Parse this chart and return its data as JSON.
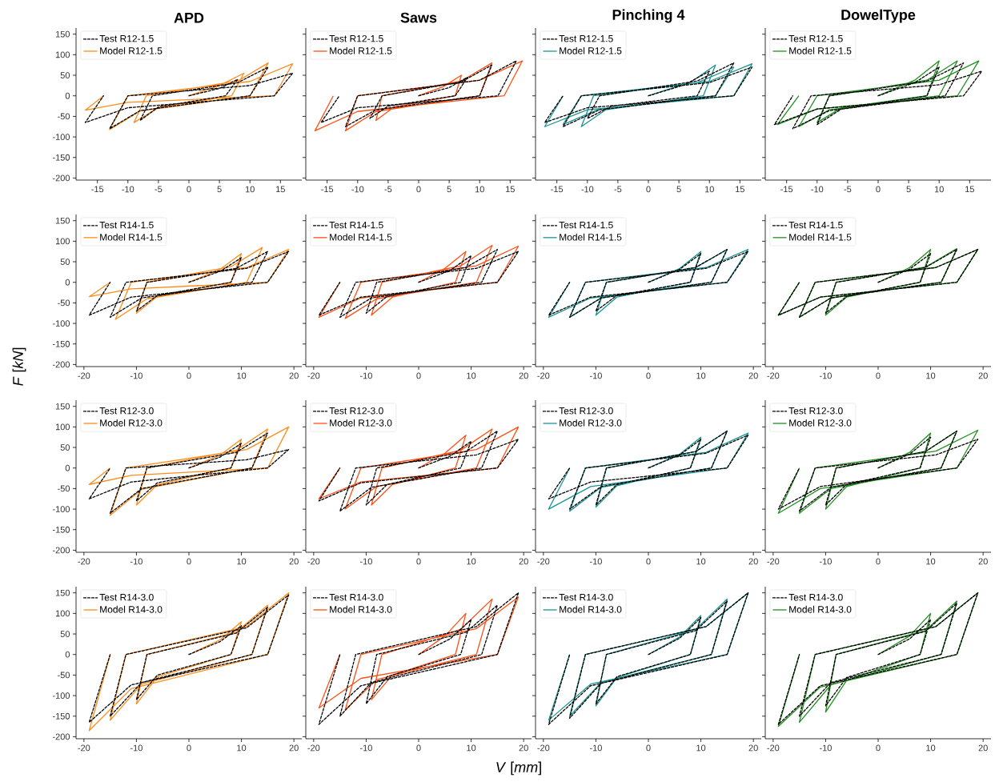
{
  "chart_data": [
    {
      "type": "line",
      "title": "APD",
      "xlim": [
        -18.5,
        18.5
      ],
      "ylim": [
        -205,
        165
      ],
      "xticks": [
        -15,
        -10,
        -5,
        0,
        5,
        10,
        15
      ],
      "yticks": [
        -200,
        -150,
        -100,
        -50,
        0,
        50,
        100,
        150
      ],
      "legend": "top left",
      "series": [
        {
          "name": "Test R12-1.5",
          "color": "#000000",
          "line_style": "dashed",
          "x": [
            0,
            5,
            8,
            6,
            -5,
            -8,
            -6,
            8,
            13,
            10,
            -8,
            -13,
            -10,
            10,
            17,
            14,
            -10,
            -17,
            -14
          ],
          "values": [
            0,
            18,
            40,
            0,
            -27,
            -60,
            0,
            32,
            70,
            0,
            -36,
            -80,
            0,
            25,
            55,
            0,
            -29,
            -65,
            0
          ]
        },
        {
          "name": "Model R12-1.5",
          "color": "#ff8c1a",
          "line_style": "solid",
          "x": [
            0,
            5,
            9,
            7,
            -5,
            -9,
            -7,
            8,
            13,
            10,
            -8,
            -13,
            -10,
            10,
            17,
            14,
            -10,
            -17,
            -14
          ],
          "values": [
            0,
            25,
            55,
            0,
            -29,
            -65,
            0,
            36,
            80,
            0,
            -37,
            -82,
            0,
            35,
            78,
            0,
            -16,
            -35,
            0
          ]
        }
      ]
    },
    {
      "type": "line",
      "title": "Saws",
      "xlim": [
        -18.5,
        18.5
      ],
      "ylim": [
        -205,
        165
      ],
      "xticks": [
        -15,
        -10,
        -5,
        0,
        5,
        10,
        15
      ],
      "yticks": [
        -200,
        -150,
        -100,
        -50,
        0,
        50,
        100,
        150
      ],
      "legend": "top left",
      "tick_labels": "x",
      "series": [
        {
          "name": "Test R12-1.5",
          "color": "#000000",
          "line_style": "dashed",
          "x": [
            0,
            5,
            8,
            6,
            -5,
            -8,
            -6,
            7,
            12,
            10,
            -7,
            -12,
            -10,
            10,
            16,
            13,
            -10,
            -16,
            -13
          ],
          "values": [
            0,
            20,
            45,
            0,
            -25,
            -55,
            0,
            34,
            75,
            0,
            -34,
            -75,
            0,
            38,
            85,
            0,
            -29,
            -65,
            0
          ]
        },
        {
          "name": "Model R12-1.5",
          "color": "#ff5016",
          "line_style": "solid",
          "x": [
            0,
            4,
            7,
            6,
            -4,
            -7,
            -6,
            7,
            12,
            10,
            -7,
            -12,
            -10,
            10,
            17,
            14,
            -10,
            -17,
            -14
          ],
          "values": [
            0,
            22,
            50,
            0,
            -27,
            -60,
            0,
            36,
            80,
            0,
            -38,
            -85,
            0,
            38,
            85,
            0,
            -38,
            -85,
            0
          ]
        }
      ]
    },
    {
      "type": "line",
      "title": "Pinching 4",
      "xlim": [
        -18.5,
        18.5
      ],
      "ylim": [
        -205,
        165
      ],
      "xticks": [
        -15,
        -10,
        -5,
        0,
        5,
        10,
        15
      ],
      "yticks": [
        -200,
        -150,
        -100,
        -50,
        0,
        50,
        100,
        150
      ],
      "legend": "top left",
      "tick_labels": "x",
      "series": [
        {
          "name": "Test R12-1.5",
          "color": "#000000",
          "line_style": "dashed",
          "x": [
            0,
            6,
            10,
            8,
            -6,
            -10,
            -8,
            8,
            14,
            11,
            -8,
            -14,
            -11,
            10,
            17,
            14,
            -10,
            -17,
            -14
          ],
          "values": [
            0,
            27,
            60,
            0,
            -25,
            -55,
            0,
            36,
            80,
            0,
            -34,
            -75,
            0,
            32,
            70,
            0,
            -29,
            -65,
            0
          ]
        },
        {
          "name": "Model R12-1.5",
          "color": "#1a9494",
          "line_style": "solid",
          "x": [
            0,
            7,
            11,
            9,
            -7,
            -11,
            -9,
            8,
            14,
            11,
            -8,
            -14,
            -11,
            10,
            17,
            14,
            -10,
            -17,
            -14
          ],
          "values": [
            0,
            34,
            75,
            0,
            -34,
            -75,
            0,
            32,
            70,
            0,
            -32,
            -70,
            0,
            35,
            78,
            0,
            -34,
            -75,
            0
          ]
        }
      ]
    },
    {
      "type": "line",
      "title": "DowelType",
      "xlim": [
        -18.5,
        18.5
      ],
      "ylim": [
        -205,
        165
      ],
      "xticks": [
        -15,
        -10,
        -5,
        0,
        5,
        10,
        15
      ],
      "yticks": [
        -200,
        -150,
        -100,
        -50,
        0,
        50,
        100,
        150
      ],
      "legend": "top left",
      "tick_labels": "x",
      "series": [
        {
          "name": "Test R12-1.5",
          "color": "#000000",
          "line_style": "dashed",
          "x": [
            0,
            6,
            10,
            8,
            -6,
            -10,
            -8,
            8,
            14,
            11,
            -8,
            -14,
            -11,
            10,
            17,
            14,
            -10,
            -17,
            -14
          ],
          "values": [
            0,
            32,
            70,
            0,
            -32,
            -70,
            0,
            36,
            80,
            0,
            -36,
            -80,
            0,
            27,
            60,
            0,
            -32,
            -70,
            0
          ]
        },
        {
          "name": "Model R12-1.5",
          "color": "#1f8f1f",
          "line_style": "solid",
          "x": [
            0,
            6,
            10,
            8,
            -6,
            -10,
            -8,
            8,
            13,
            10,
            -8,
            -13,
            -10,
            10,
            16.5,
            13,
            -10,
            -16.5,
            -13
          ],
          "values": [
            0,
            38,
            85,
            0,
            -29,
            -65,
            0,
            38,
            85,
            0,
            -34,
            -75,
            0,
            38,
            85,
            0,
            -32,
            -70,
            0
          ]
        }
      ]
    },
    {
      "type": "line",
      "ylabel": "*F* [*kN*]",
      "xlim": [
        -21.5,
        21.5
      ],
      "ylim": [
        -205,
        165
      ],
      "xticks": [
        -20,
        -10,
        0,
        10,
        20
      ],
      "yticks": [
        -200,
        -150,
        -100,
        -50,
        0,
        50,
        100,
        150
      ],
      "legend": "top left",
      "series": [
        {
          "name": "Test R14-1.5",
          "color": "#000000",
          "line_style": "dashed",
          "x": [
            0,
            6,
            10,
            8,
            -6,
            -10,
            -8,
            9,
            15,
            12,
            -9,
            -15,
            -12,
            11,
            19,
            15,
            -11,
            -19,
            -15
          ],
          "values": [
            0,
            27,
            60,
            0,
            -32,
            -70,
            0,
            34,
            75,
            0,
            -38,
            -85,
            0,
            34,
            75,
            0,
            -36,
            -80,
            0
          ]
        },
        {
          "name": "Model R14-1.5",
          "color": "#ff8c1a",
          "line_style": "solid",
          "x": [
            0,
            6,
            10,
            8,
            -6,
            -10,
            -8,
            8,
            14,
            11,
            -8,
            -14,
            -11,
            11,
            19,
            15,
            -11,
            -19,
            -15
          ],
          "values": [
            0,
            32,
            70,
            0,
            -34,
            -75,
            0,
            38,
            85,
            0,
            -40,
            -90,
            0,
            36,
            80,
            0,
            -16,
            -35,
            0
          ]
        }
      ]
    },
    {
      "type": "line",
      "xlim": [
        -21.5,
        21.5
      ],
      "ylim": [
        -205,
        165
      ],
      "xticks": [
        -20,
        -10,
        0,
        10,
        20
      ],
      "yticks": [
        -200,
        -150,
        -100,
        -50,
        0,
        50,
        100,
        150
      ],
      "legend": "top left",
      "tick_labels": "x",
      "series": [
        {
          "name": "Test R14-1.5",
          "color": "#000000",
          "line_style": "dashed",
          "x": [
            0,
            6,
            10,
            8,
            -6,
            -10,
            -8,
            9,
            15,
            12,
            -9,
            -15,
            -12,
            11,
            19,
            15,
            -11,
            -19,
            -15
          ],
          "values": [
            0,
            29,
            65,
            0,
            -34,
            -75,
            0,
            36,
            80,
            0,
            -38,
            -85,
            0,
            34,
            75,
            0,
            -36,
            -80,
            0
          ]
        },
        {
          "name": "Model R14-1.5",
          "color": "#ff5016",
          "line_style": "solid",
          "x": [
            0,
            5,
            9,
            7,
            -5,
            -9,
            -7,
            8,
            14,
            11,
            -8,
            -14,
            -11,
            11,
            19,
            15,
            -11,
            -19,
            -15
          ],
          "values": [
            0,
            34,
            75,
            0,
            -36,
            -80,
            0,
            40,
            90,
            0,
            -40,
            -88,
            0,
            40,
            88,
            0,
            -38,
            -85,
            0
          ]
        }
      ]
    },
    {
      "type": "line",
      "xlim": [
        -21.5,
        21.5
      ],
      "ylim": [
        -205,
        165
      ],
      "xticks": [
        -20,
        -10,
        0,
        10,
        20
      ],
      "yticks": [
        -200,
        -150,
        -100,
        -50,
        0,
        50,
        100,
        150
      ],
      "legend": "top left",
      "tick_labels": "x",
      "series": [
        {
          "name": "Test R14-1.5",
          "color": "#000000",
          "line_style": "dashed",
          "x": [
            0,
            6,
            10,
            8,
            -6,
            -10,
            -8,
            9,
            15,
            12,
            -9,
            -15,
            -12,
            11,
            19,
            15,
            -11,
            -19,
            -15
          ],
          "values": [
            0,
            32,
            70,
            0,
            -32,
            -70,
            0,
            36,
            80,
            0,
            -38,
            -85,
            0,
            34,
            75,
            0,
            -36,
            -80,
            0
          ]
        },
        {
          "name": "Model R14-1.5",
          "color": "#1a9494",
          "line_style": "solid",
          "x": [
            0,
            6,
            10,
            8,
            -6,
            -10,
            -8,
            9,
            15,
            12,
            -9,
            -15,
            -12,
            11,
            19,
            15,
            -11,
            -19,
            -15
          ],
          "values": [
            0,
            34,
            75,
            0,
            -36,
            -80,
            0,
            36,
            80,
            0,
            -38,
            -85,
            0,
            36,
            80,
            0,
            -38,
            -85,
            0
          ]
        }
      ]
    },
    {
      "type": "line",
      "xlim": [
        -21.5,
        21.5
      ],
      "ylim": [
        -205,
        165
      ],
      "xticks": [
        -20,
        -10,
        0,
        10,
        20
      ],
      "yticks": [
        -200,
        -150,
        -100,
        -50,
        0,
        50,
        100,
        150
      ],
      "legend": "top left",
      "tick_labels": "x",
      "series": [
        {
          "name": "Test R14-1.5",
          "color": "#000000",
          "line_style": "dashed",
          "x": [
            0,
            6,
            10,
            8,
            -6,
            -10,
            -8,
            9,
            15,
            12,
            -9,
            -15,
            -12,
            11,
            19,
            15,
            -11,
            -19,
            -15
          ],
          "values": [
            0,
            32,
            70,
            0,
            -34,
            -75,
            0,
            36,
            80,
            0,
            -38,
            -85,
            0,
            36,
            80,
            0,
            -36,
            -80,
            0
          ]
        },
        {
          "name": "Model R14-1.5",
          "color": "#1f8f1f",
          "line_style": "solid",
          "x": [
            0,
            6,
            10,
            8,
            -6,
            -10,
            -8,
            9,
            15,
            12,
            -9,
            -15,
            -12,
            11,
            19,
            15,
            -11,
            -19,
            -15
          ],
          "values": [
            0,
            36,
            80,
            0,
            -36,
            -80,
            0,
            37,
            82,
            0,
            -38,
            -85,
            0,
            36,
            80,
            0,
            -36,
            -80,
            0
          ]
        }
      ]
    },
    {
      "type": "line",
      "xlim": [
        -21.5,
        21.5
      ],
      "ylim": [
        -205,
        165
      ],
      "xticks": [
        -20,
        -10,
        0,
        10,
        20
      ],
      "yticks": [
        -200,
        -150,
        -100,
        -50,
        0,
        50,
        100,
        150
      ],
      "legend": "top left",
      "series": [
        {
          "name": "Test R12-3.0",
          "color": "#000000",
          "line_style": "dashed",
          "x": [
            0,
            6,
            10,
            8,
            -6,
            -10,
            -8,
            9,
            15,
            12,
            -9,
            -15,
            -12,
            11,
            19,
            15,
            -11,
            -19,
            -15
          ],
          "values": [
            0,
            27,
            60,
            0,
            -36,
            -80,
            0,
            38,
            85,
            0,
            -50,
            -110,
            0,
            20,
            45,
            0,
            -34,
            -75,
            0
          ]
        },
        {
          "name": "Model R12-3.0",
          "color": "#ff8c1a",
          "line_style": "solid",
          "x": [
            0,
            6,
            10,
            8,
            -6,
            -10,
            -8,
            9,
            15,
            12,
            -9,
            -15,
            -12,
            11,
            19,
            15,
            -11,
            -19,
            -15
          ],
          "values": [
            0,
            32,
            70,
            0,
            -40,
            -90,
            0,
            43,
            95,
            0,
            -52,
            -115,
            0,
            45,
            100,
            0,
            -18,
            -40,
            0
          ]
        }
      ]
    },
    {
      "type": "line",
      "xlim": [
        -21.5,
        21.5
      ],
      "ylim": [
        -205,
        165
      ],
      "xticks": [
        -20,
        -10,
        0,
        10,
        20
      ],
      "yticks": [
        -200,
        -150,
        -100,
        -50,
        0,
        50,
        100,
        150
      ],
      "legend": "top left",
      "tick_labels": "x",
      "series": [
        {
          "name": "Test R12-3.0",
          "color": "#000000",
          "line_style": "dashed",
          "x": [
            0,
            6,
            10,
            8,
            -6,
            -10,
            -8,
            9,
            15,
            12,
            -9,
            -15,
            -12,
            11,
            19,
            15,
            -11,
            -19,
            -15
          ],
          "values": [
            0,
            29,
            65,
            0,
            -40,
            -90,
            0,
            40,
            90,
            0,
            -47,
            -105,
            0,
            32,
            70,
            0,
            -36,
            -80,
            0
          ]
        },
        {
          "name": "Model R12-3.0",
          "color": "#ff5016",
          "line_style": "solid",
          "x": [
            0,
            5,
            9,
            7,
            -5,
            -9,
            -7,
            8,
            14,
            11,
            -8,
            -14,
            -11,
            11,
            19,
            15,
            -11,
            -19,
            -15
          ],
          "values": [
            0,
            36,
            80,
            0,
            -40,
            -90,
            0,
            43,
            95,
            0,
            -45,
            -100,
            0,
            45,
            100,
            0,
            -34,
            -75,
            0
          ]
        }
      ]
    },
    {
      "type": "line",
      "xlim": [
        -21.5,
        21.5
      ],
      "ylim": [
        -205,
        165
      ],
      "xticks": [
        -20,
        -10,
        0,
        10,
        20
      ],
      "yticks": [
        -200,
        -150,
        -100,
        -50,
        0,
        50,
        100,
        150
      ],
      "legend": "top left",
      "tick_labels": "x",
      "series": [
        {
          "name": "Test R12-3.0",
          "color": "#000000",
          "line_style": "dashed",
          "x": [
            0,
            6,
            10,
            8,
            -6,
            -10,
            -8,
            9,
            15,
            12,
            -9,
            -15,
            -12,
            11,
            19,
            15,
            -11,
            -19,
            -15
          ],
          "values": [
            0,
            32,
            70,
            0,
            -40,
            -90,
            0,
            40,
            90,
            0,
            -45,
            -100,
            0,
            36,
            80,
            0,
            -34,
            -75,
            0
          ]
        },
        {
          "name": "Model R12-3.0",
          "color": "#1a9494",
          "line_style": "solid",
          "x": [
            0,
            6,
            10,
            8,
            -6,
            -10,
            -8,
            9,
            15,
            12,
            -9,
            -15,
            -12,
            11,
            19,
            15,
            -11,
            -19,
            -15
          ],
          "values": [
            0,
            34,
            75,
            0,
            -43,
            -95,
            0,
            40,
            90,
            0,
            -47,
            -105,
            0,
            38,
            85,
            0,
            -45,
            -100,
            0
          ]
        }
      ]
    },
    {
      "type": "line",
      "xlim": [
        -21.5,
        21.5
      ],
      "ylim": [
        -205,
        165
      ],
      "xticks": [
        -20,
        -10,
        0,
        10,
        20
      ],
      "yticks": [
        -200,
        -150,
        -100,
        -50,
        0,
        50,
        100,
        150
      ],
      "legend": "top left",
      "tick_labels": "x",
      "series": [
        {
          "name": "Test R12-3.0",
          "color": "#000000",
          "line_style": "dashed",
          "x": [
            0,
            6,
            10,
            8,
            -6,
            -10,
            -8,
            9,
            15,
            12,
            -9,
            -15,
            -12,
            11,
            19,
            15,
            -11,
            -19,
            -15
          ],
          "values": [
            0,
            34,
            75,
            0,
            -40,
            -90,
            0,
            40,
            90,
            0,
            -47,
            -105,
            0,
            32,
            70,
            0,
            -45,
            -100,
            0
          ]
        },
        {
          "name": "Model R12-3.0",
          "color": "#1f8f1f",
          "line_style": "solid",
          "x": [
            0,
            6,
            10,
            8,
            -6,
            -10,
            -8,
            9,
            15,
            12,
            -9,
            -15,
            -12,
            11,
            19,
            15,
            -11,
            -19,
            -15
          ],
          "values": [
            0,
            38,
            85,
            0,
            -45,
            -100,
            0,
            40,
            90,
            0,
            -50,
            -110,
            0,
            41,
            92,
            0,
            -50,
            -110,
            0
          ]
        }
      ]
    },
    {
      "type": "line",
      "xlim": [
        -21.5,
        21.5
      ],
      "ylim": [
        -205,
        165
      ],
      "xticks": [
        -20,
        -10,
        0,
        10,
        20
      ],
      "yticks": [
        -200,
        -150,
        -100,
        -50,
        0,
        50,
        100,
        150
      ],
      "legend": "top left",
      "series": [
        {
          "name": "Test R14-3.0",
          "color": "#000000",
          "line_style": "dashed",
          "x": [
            0,
            6,
            10,
            8,
            -6,
            -10,
            -8,
            9,
            15,
            12,
            -9,
            -15,
            -12,
            11,
            19,
            15,
            -11,
            -19,
            -15
          ],
          "values": [
            0,
            32,
            70,
            0,
            -50,
            -110,
            0,
            52,
            115,
            0,
            -68,
            -150,
            0,
            65,
            145,
            0,
            -74,
            -165,
            0
          ]
        },
        {
          "name": "Model R14-3.0",
          "color": "#ff8c1a",
          "line_style": "solid",
          "x": [
            0,
            6,
            10,
            8,
            -6,
            -10,
            -8,
            9,
            15,
            12,
            -9,
            -15,
            -12,
            11,
            19,
            15,
            -11,
            -19,
            -15
          ],
          "values": [
            0,
            36,
            80,
            0,
            -54,
            -120,
            0,
            54,
            120,
            0,
            -72,
            -160,
            0,
            68,
            150,
            0,
            -83,
            -185,
            0
          ]
        }
      ]
    },
    {
      "type": "line",
      "xlabel": "*V* [*mm*]",
      "xlim": [
        -21.5,
        21.5
      ],
      "ylim": [
        -205,
        165
      ],
      "xticks": [
        -20,
        -10,
        0,
        10,
        20
      ],
      "yticks": [
        -200,
        -150,
        -100,
        -50,
        0,
        50,
        100,
        150
      ],
      "legend": "top left",
      "tick_labels": "x",
      "series": [
        {
          "name": "Test R14-3.0",
          "color": "#000000",
          "line_style": "dashed",
          "x": [
            0,
            6,
            10,
            8,
            -6,
            -10,
            -8,
            9,
            15,
            12,
            -9,
            -15,
            -12,
            11,
            19,
            15,
            -11,
            -19,
            -15
          ],
          "values": [
            0,
            38,
            85,
            0,
            -54,
            -120,
            0,
            54,
            120,
            0,
            -68,
            -150,
            0,
            68,
            150,
            0,
            -76,
            -170,
            0
          ]
        },
        {
          "name": "Model R14-3.0",
          "color": "#ff5016",
          "line_style": "solid",
          "x": [
            0,
            5,
            9,
            7,
            -5,
            -9,
            -7,
            8,
            14,
            11,
            -8,
            -14,
            -11,
            11,
            19,
            15,
            -11,
            -19,
            -15
          ],
          "values": [
            0,
            45,
            100,
            0,
            -50,
            -110,
            0,
            61,
            135,
            0,
            -61,
            -135,
            0,
            63,
            140,
            0,
            -58,
            -130,
            0
          ]
        }
      ]
    },
    {
      "type": "line",
      "xlim": [
        -21.5,
        21.5
      ],
      "ylim": [
        -205,
        165
      ],
      "xticks": [
        -20,
        -10,
        0,
        10,
        20
      ],
      "yticks": [
        -200,
        -150,
        -100,
        -50,
        0,
        50,
        100,
        150
      ],
      "legend": "top left",
      "tick_labels": "x",
      "series": [
        {
          "name": "Test R14-3.0",
          "color": "#000000",
          "line_style": "dashed",
          "x": [
            0,
            6,
            10,
            8,
            -6,
            -10,
            -8,
            9,
            15,
            12,
            -9,
            -15,
            -12,
            11,
            19,
            15,
            -11,
            -19,
            -15
          ],
          "values": [
            0,
            40,
            90,
            0,
            -54,
            -120,
            0,
            58,
            130,
            0,
            -70,
            -155,
            0,
            68,
            150,
            0,
            -76,
            -170,
            0
          ]
        },
        {
          "name": "Model R14-3.0",
          "color": "#1a9494",
          "line_style": "solid",
          "x": [
            0,
            6,
            10,
            8,
            -6,
            -10,
            -8,
            9,
            15,
            12,
            -9,
            -15,
            -12,
            11,
            19,
            15,
            -11,
            -19,
            -15
          ],
          "values": [
            0,
            43,
            95,
            0,
            -56,
            -125,
            0,
            61,
            135,
            0,
            -68,
            -150,
            0,
            68,
            150,
            0,
            -72,
            -160,
            0
          ]
        }
      ]
    },
    {
      "type": "line",
      "xlim": [
        -21.5,
        21.5
      ],
      "ylim": [
        -205,
        165
      ],
      "xticks": [
        -20,
        -10,
        0,
        10,
        20
      ],
      "yticks": [
        -200,
        -150,
        -100,
        -50,
        0,
        50,
        100,
        150
      ],
      "legend": "top left",
      "tick_labels": "x",
      "series": [
        {
          "name": "Test R14-3.0",
          "color": "#000000",
          "line_style": "dashed",
          "x": [
            0,
            6,
            10,
            8,
            -6,
            -10,
            -8,
            9,
            15,
            12,
            -9,
            -15,
            -12,
            11,
            19,
            15,
            -11,
            -19,
            -15
          ],
          "values": [
            0,
            38,
            85,
            0,
            -56,
            -125,
            0,
            56,
            125,
            0,
            -68,
            -150,
            0,
            68,
            150,
            0,
            -76,
            -170,
            0
          ]
        },
        {
          "name": "Model R14-3.0",
          "color": "#1f8f1f",
          "line_style": "solid",
          "x": [
            0,
            6,
            10,
            8,
            -6,
            -10,
            -8,
            9,
            15,
            12,
            -9,
            -15,
            -12,
            11,
            19,
            15,
            -11,
            -19,
            -15
          ],
          "values": [
            0,
            45,
            100,
            0,
            -63,
            -140,
            0,
            58,
            130,
            0,
            -74,
            -165,
            0,
            68,
            150,
            0,
            -79,
            -175,
            0
          ]
        }
      ]
    }
  ]
}
